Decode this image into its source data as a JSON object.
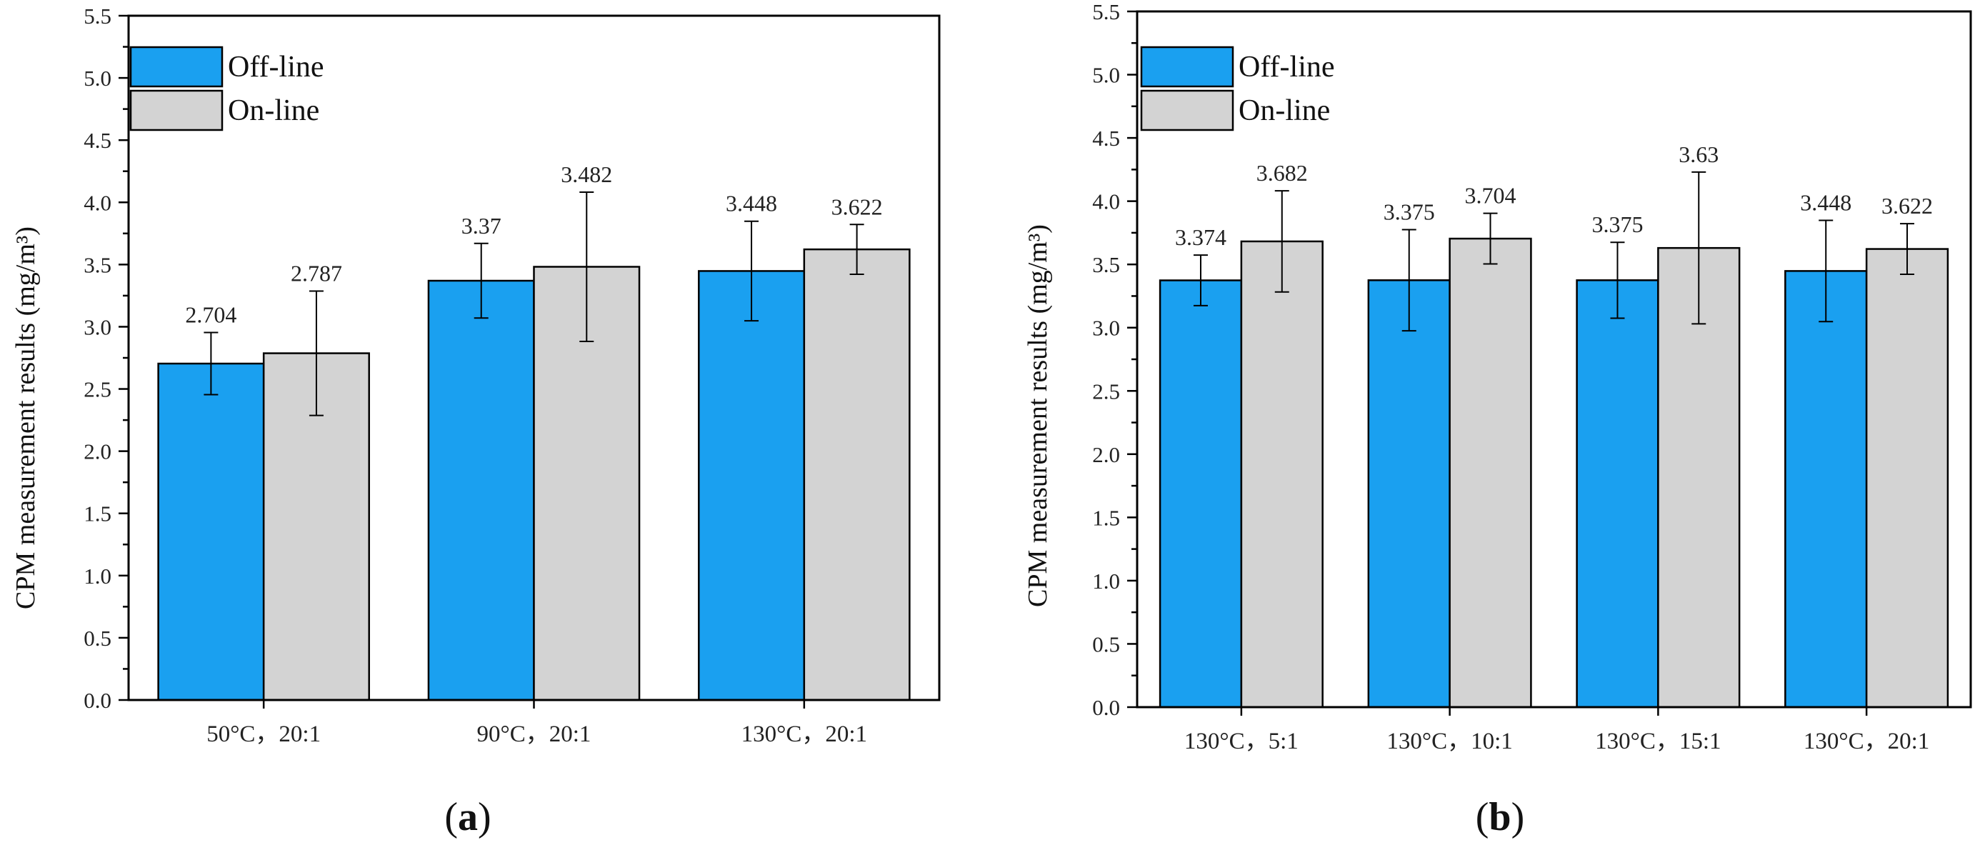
{
  "colors": {
    "offline": "#1AA0F0",
    "online": "#D3D3D3",
    "axis": "#000000"
  },
  "chart_data": [
    {
      "type": "bar",
      "panel": "a",
      "panel_label": "a",
      "ylabel": "CPM measurement results (mg/m³)",
      "xlabel": "",
      "ylim": [
        0,
        5.5
      ],
      "yticks": [
        "0.0",
        "0.5",
        "1.0",
        "1.5",
        "2.0",
        "2.5",
        "3.0",
        "3.5",
        "4.0",
        "4.5",
        "5.0",
        "5.5"
      ],
      "categories": [
        "50°C，20:1",
        "90°C，20:1",
        "130°C，20:1"
      ],
      "legend_position": "top-left",
      "series": [
        {
          "name": "Off-line",
          "values": [
            2.704,
            3.37,
            3.448
          ],
          "labels": [
            "2.704",
            "3.37",
            "3.448"
          ],
          "errors": [
            0.25,
            0.3,
            0.4
          ]
        },
        {
          "name": "On-line",
          "values": [
            2.787,
            3.482,
            3.622
          ],
          "labels": [
            "2.787",
            "3.482",
            "3.622"
          ],
          "errors": [
            0.5,
            0.6,
            0.2
          ]
        }
      ]
    },
    {
      "type": "bar",
      "panel": "b",
      "panel_label": "b",
      "ylabel": "CPM measurement results (mg/m³)",
      "xlabel": "",
      "ylim": [
        0,
        5.5
      ],
      "yticks": [
        "0.0",
        "0.5",
        "1.0",
        "1.5",
        "2.0",
        "2.5",
        "3.0",
        "3.5",
        "4.0",
        "4.5",
        "5.0",
        "5.5"
      ],
      "categories": [
        "130°C，5:1",
        "130°C，10:1",
        "130°C，15:1",
        "130°C，20:1"
      ],
      "legend_position": "top-left",
      "series": [
        {
          "name": "Off-line",
          "values": [
            3.374,
            3.375,
            3.375,
            3.448
          ],
          "labels": [
            "3.374",
            "3.375",
            "3.375",
            "3.448"
          ],
          "errors": [
            0.2,
            0.4,
            0.3,
            0.4
          ]
        },
        {
          "name": "On-line",
          "values": [
            3.682,
            3.704,
            3.63,
            3.622
          ],
          "labels": [
            "3.682",
            "3.704",
            "3.63",
            "3.622"
          ],
          "errors": [
            0.4,
            0.2,
            0.6,
            0.2
          ]
        }
      ]
    }
  ]
}
